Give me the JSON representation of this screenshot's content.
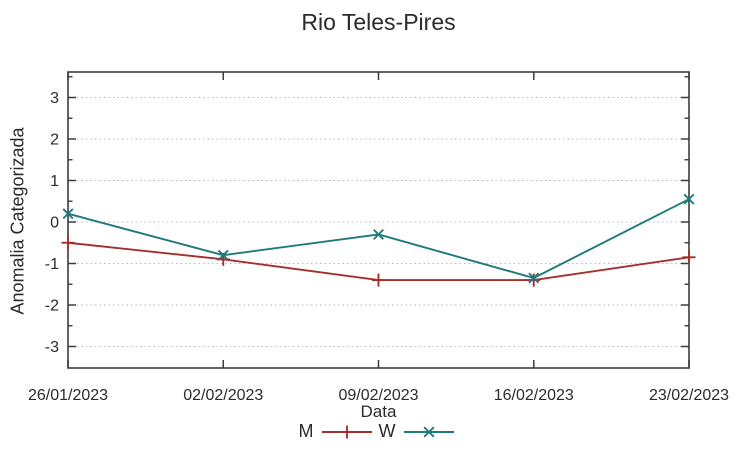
{
  "chart_data": {
    "type": "line",
    "title": "Rio Teles-Pires",
    "xlabel": "Data",
    "ylabel": "Anomalia Categorizada",
    "categories": [
      "26/01/2023",
      "02/02/2023",
      "09/02/2023",
      "16/02/2023",
      "23/02/2023"
    ],
    "series": [
      {
        "name": "M",
        "color": "#a52f2b",
        "marker": "plus",
        "values": [
          -0.5,
          -0.9,
          -1.4,
          -1.4,
          -0.85
        ]
      },
      {
        "name": "W",
        "color": "#1f7a7a",
        "marker": "cross",
        "values": [
          0.2,
          -0.8,
          -0.3,
          -1.35,
          0.55
        ]
      }
    ],
    "yticks": [
      3,
      2,
      1,
      0,
      -1,
      -2,
      -3
    ],
    "ylim": [
      -3.6,
      3.6
    ],
    "grid": "horizontal-dotted-at-integer-y",
    "legend_position": "bottom-center",
    "colors": {
      "grid": "#b5b5b5",
      "axis": "#3c3c3c",
      "text": "#2b2b2b",
      "background": "#ffffff"
    }
  }
}
